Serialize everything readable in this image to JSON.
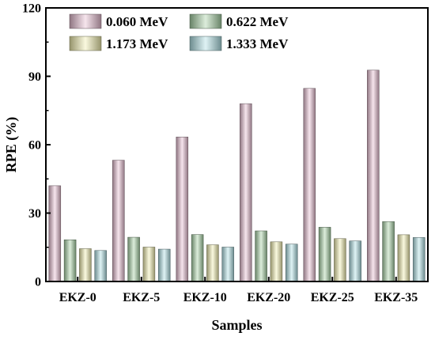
{
  "chart_data": {
    "type": "bar",
    "title": "",
    "xlabel": "Samples",
    "ylabel": "RPE (%)",
    "ylim": [
      0,
      120
    ],
    "yticks": [
      "0",
      "30",
      "60",
      "90",
      "120"
    ],
    "grid": false,
    "legend_placement": "top-left",
    "categories": [
      "EKZ-0",
      "EKZ-5",
      "EKZ-10",
      "EKZ-20",
      "EKZ-25",
      "EKZ-35"
    ],
    "series": [
      {
        "name": "0.060 MeV",
        "color": "#e9bfd2",
        "values": [
          42.0,
          53.2,
          63.4,
          78.0,
          84.7,
          92.7
        ]
      },
      {
        "name": "0.622 MeV",
        "color": "#a7d3a6",
        "values": [
          18.3,
          19.4,
          20.6,
          22.2,
          23.8,
          26.3
        ]
      },
      {
        "name": "1.173 MeV",
        "color": "#f2efae",
        "values": [
          14.4,
          15.1,
          16.1,
          17.4,
          18.8,
          20.5
        ]
      },
      {
        "name": "1.333 MeV",
        "color": "#b0e2e6",
        "values": [
          13.6,
          14.2,
          15.1,
          16.4,
          17.8,
          19.3
        ]
      }
    ]
  }
}
